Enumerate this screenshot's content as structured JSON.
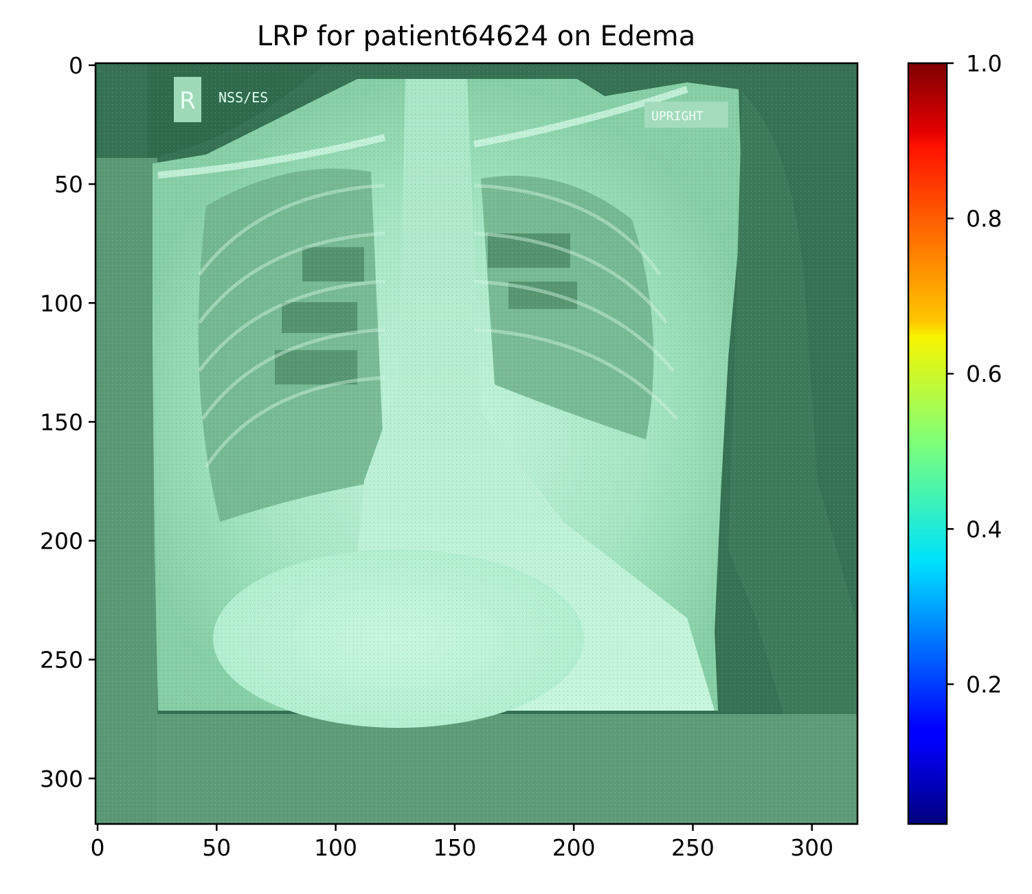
{
  "chart_data": {
    "type": "heatmap",
    "title": "LRP for patient64624 on Edema",
    "xlabel": "",
    "ylabel": "",
    "xlim": [
      0,
      320
    ],
    "ylim": [
      320,
      0
    ],
    "xticks": [
      0,
      50,
      100,
      150,
      200,
      250,
      300
    ],
    "yticks": [
      0,
      50,
      100,
      150,
      200,
      250,
      300
    ],
    "colorbar": {
      "colormap": "jet",
      "range": [
        0.02,
        1.0
      ],
      "ticks": [
        0.2,
        0.4,
        0.6,
        0.8,
        1.0
      ],
      "tick_labels": [
        "0.2",
        "0.4",
        "0.6",
        "0.8",
        "1.0"
      ]
    },
    "image_description": "chest x-ray overlaid with LRP relevance map (mostly ~0.45 green/teal tint)",
    "embedded_image_text": [
      "R",
      "NSS/ES",
      "UPRIGHT"
    ],
    "grid": false
  },
  "colors": {
    "background_overlay": "#357152",
    "image_tint_light": "#b8f0d2",
    "image_tint_mid": "#7fc9a0",
    "axes": "#000000"
  }
}
